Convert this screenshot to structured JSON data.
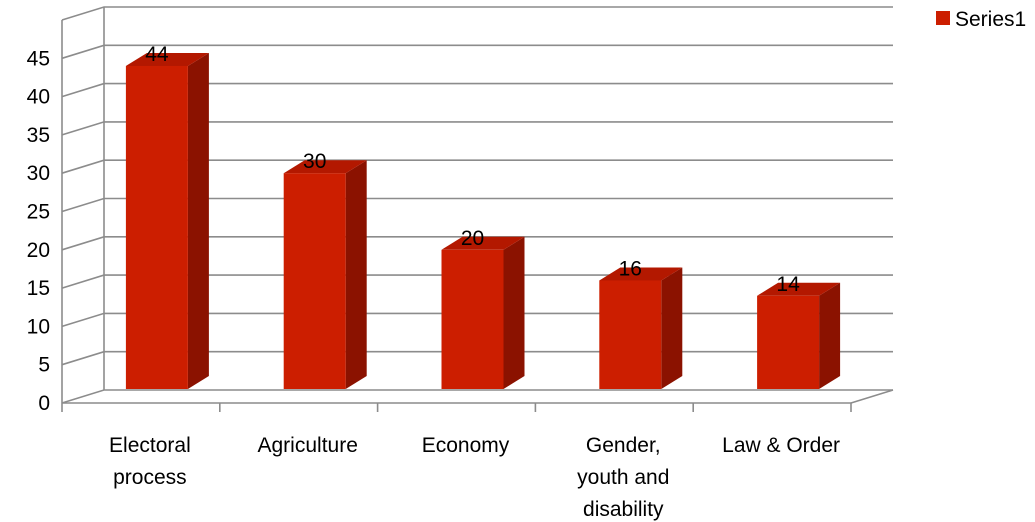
{
  "chart_data": {
    "type": "bar",
    "style": "3d-column",
    "categories": [
      [
        "Electoral",
        "process"
      ],
      [
        "Agriculture"
      ],
      [
        "Economy"
      ],
      [
        "Gender,",
        "youth and",
        "disability"
      ],
      [
        "Law & Order"
      ]
    ],
    "series": [
      {
        "name": "Series1",
        "values": [
          44,
          30,
          20,
          16,
          14
        ],
        "color": "#cc1e00"
      }
    ],
    "data_labels": [
      "44",
      "30",
      "20",
      "16",
      "14"
    ],
    "yticks": [
      "0",
      "5",
      "10",
      "15",
      "20",
      "25",
      "30",
      "35",
      "40",
      "45"
    ],
    "ylim": [
      0,
      50
    ],
    "grid": true,
    "legend": "top-right"
  }
}
